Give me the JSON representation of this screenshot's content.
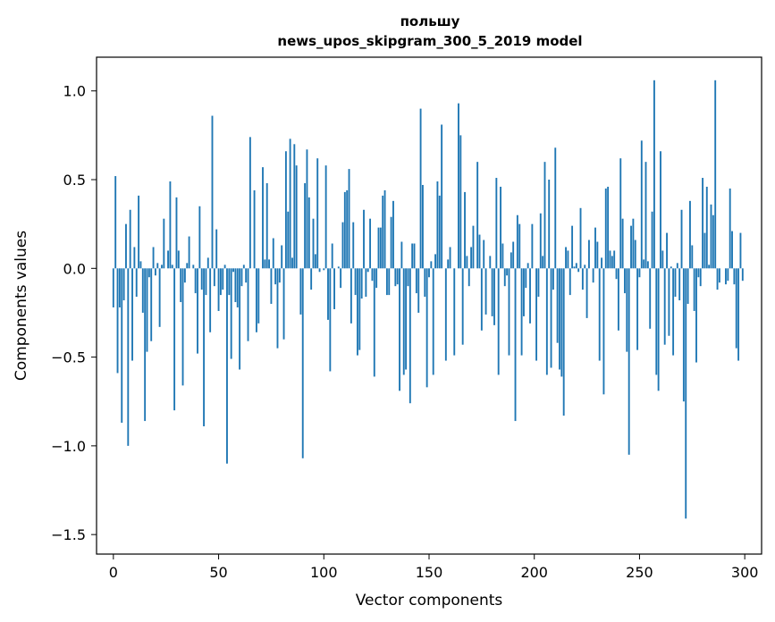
{
  "chart_data": {
    "type": "bar",
    "title": "польшу",
    "subtitle": "news_upos_skipgram_300_5_2019 model",
    "xlabel": "Vector components",
    "ylabel": "Components values",
    "xlim": [
      -8,
      308
    ],
    "ylim": [
      -1.61,
      1.19
    ],
    "xticks": [
      0,
      50,
      100,
      150,
      200,
      250,
      300
    ],
    "xtick_labels": [
      "0",
      "50",
      "100",
      "150",
      "200",
      "250",
      "300"
    ],
    "yticks": [
      1.0,
      0.5,
      0.0,
      -0.5,
      -1.0,
      -1.5
    ],
    "ytick_labels": [
      "1.0",
      "0.5",
      "0.0",
      "−0.5",
      "−1.0",
      "−1.5"
    ],
    "bar_color": "#1f77b4",
    "values": [
      -0.22,
      0.52,
      -0.59,
      -0.22,
      -0.87,
      -0.18,
      0.25,
      -1.0,
      0.33,
      -0.52,
      0.12,
      -0.16,
      0.41,
      0.04,
      -0.25,
      -0.86,
      -0.47,
      -0.05,
      -0.41,
      0.12,
      -0.04,
      0.03,
      -0.33,
      0.02,
      0.28,
      0.0,
      0.1,
      0.49,
      0.02,
      -0.8,
      0.4,
      0.1,
      -0.19,
      -0.66,
      -0.08,
      0.03,
      0.18,
      0.0,
      0.02,
      -0.14,
      -0.48,
      0.35,
      -0.12,
      -0.89,
      -0.15,
      0.06,
      -0.36,
      0.86,
      -0.1,
      0.22,
      -0.24,
      -0.15,
      -0.12,
      0.02,
      -1.1,
      -0.15,
      -0.51,
      -0.02,
      -0.19,
      -0.22,
      -0.57,
      -0.1,
      0.02,
      -0.08,
      -0.41,
      0.74,
      0.0,
      0.44,
      -0.36,
      -0.31,
      0.0,
      0.57,
      0.05,
      0.48,
      0.05,
      -0.2,
      0.17,
      -0.09,
      -0.45,
      -0.08,
      0.13,
      -0.4,
      0.66,
      0.32,
      0.73,
      0.06,
      0.7,
      0.58,
      0.0,
      -0.26,
      -1.07,
      0.48,
      0.67,
      0.4,
      -0.12,
      0.28,
      0.08,
      0.62,
      -0.02,
      0.0,
      -0.01,
      0.58,
      -0.29,
      -0.58,
      0.14,
      -0.23,
      0.0,
      0.01,
      -0.11,
      0.26,
      0.43,
      0.44,
      0.56,
      -0.31,
      0.26,
      -0.15,
      -0.49,
      -0.46,
      -0.17,
      0.33,
      -0.16,
      -0.02,
      0.28,
      -0.07,
      -0.61,
      -0.11,
      0.23,
      0.23,
      0.41,
      0.44,
      -0.15,
      -0.15,
      0.29,
      0.38,
      -0.1,
      -0.09,
      -0.69,
      0.15,
      -0.6,
      -0.57,
      -0.1,
      -0.76,
      0.14,
      0.14,
      -0.14,
      -0.25,
      0.9,
      0.47,
      -0.16,
      -0.67,
      -0.05,
      0.04,
      -0.6,
      0.08,
      0.49,
      0.41,
      0.81,
      0.0,
      -0.52,
      0.05,
      0.12,
      0.0,
      -0.49,
      0.0,
      0.93,
      0.75,
      -0.43,
      0.43,
      0.07,
      -0.1,
      0.12,
      0.24,
      0.0,
      0.6,
      0.19,
      -0.35,
      0.16,
      -0.26,
      0.0,
      0.07,
      -0.27,
      -0.32,
      0.51,
      -0.6,
      0.46,
      0.14,
      -0.1,
      -0.04,
      -0.49,
      0.09,
      0.15,
      -0.86,
      0.3,
      0.25,
      -0.49,
      -0.27,
      -0.11,
      0.03,
      -0.31,
      0.25,
      0.0,
      -0.52,
      -0.16,
      0.31,
      0.07,
      0.6,
      -0.6,
      0.5,
      -0.56,
      -0.12,
      0.68,
      -0.42,
      -0.57,
      -0.61,
      -0.83,
      0.12,
      0.1,
      -0.15,
      0.24,
      0.01,
      0.03,
      -0.02,
      0.34,
      -0.12,
      0.02,
      -0.28,
      0.16,
      0.0,
      -0.08,
      0.23,
      0.15,
      -0.52,
      0.06,
      -0.71,
      0.45,
      0.46,
      0.1,
      0.07,
      0.1,
      -0.06,
      -0.35,
      0.62,
      0.28,
      -0.14,
      -0.47,
      -1.05,
      0.24,
      0.28,
      0.16,
      -0.46,
      -0.05,
      0.72,
      0.05,
      0.6,
      0.04,
      -0.34,
      0.32,
      1.06,
      -0.6,
      -0.69,
      0.66,
      0.1,
      -0.43,
      0.2,
      -0.38,
      0.01,
      -0.49,
      -0.16,
      0.03,
      -0.18,
      0.33,
      -0.75,
      -1.41,
      -0.2,
      0.38,
      0.13,
      -0.24,
      -0.53,
      -0.05,
      -0.1,
      0.51,
      0.2,
      0.46,
      0.02,
      0.36,
      0.3,
      1.06,
      -0.12,
      -0.08,
      0.0,
      0.0,
      -0.09,
      -0.07,
      0.45,
      0.21,
      -0.09,
      -0.45,
      -0.52,
      0.2,
      -0.07
    ]
  }
}
